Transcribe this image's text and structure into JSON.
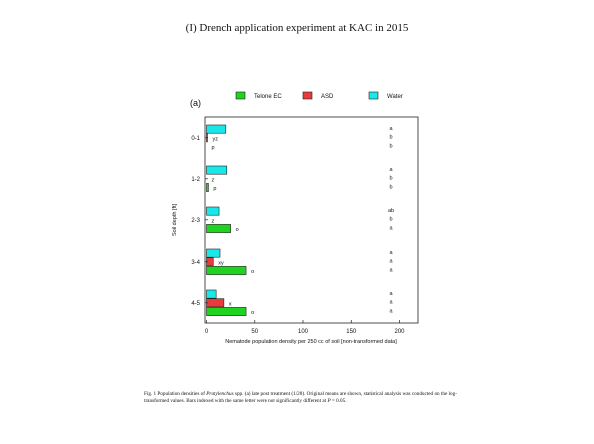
{
  "slide": {
    "title": "(I) Drench application experiment at KAC in 2015",
    "caption_parts": {
      "p1": "Fig. 1 Population densities of ",
      "species": "Pratylenchus",
      "p2": " spp. (a) late post treatment (1/28). Original means are shown, statistical analysis was conducted on the log-transformed values. Bars indexed with the same letter were not significantly different at ",
      "pvar": "P",
      "p3": " = 0.05."
    }
  },
  "chart_data": {
    "type": "bar",
    "orientation": "horizontal",
    "panel_label": "(a)",
    "categories": [
      "0-1",
      "1-2",
      "2-3",
      "3-4",
      "4-5"
    ],
    "series": [
      {
        "name": "Telone EC",
        "color": "#21d321",
        "values": [
          0,
          2,
          25,
          41,
          41
        ],
        "labels": [
          "p",
          "p",
          "o",
          "o",
          "o"
        ]
      },
      {
        "name": "ASD",
        "color": "#e83c3c",
        "values": [
          1,
          0,
          0,
          7,
          18
        ],
        "labels": [
          "yz",
          "z",
          "z",
          "xy",
          "x"
        ]
      },
      {
        "name": "Water",
        "color": "#19e8ea",
        "values": [
          20,
          21,
          13,
          14,
          10
        ],
        "labels": [
          "",
          "",
          "",
          "",
          ""
        ]
      }
    ],
    "right_letters": [
      [
        "a",
        "b",
        "b"
      ],
      [
        "a",
        "b",
        "b"
      ],
      [
        "ab",
        "b",
        "a"
      ],
      [
        "a",
        "a",
        "a"
      ],
      [
        "a",
        "a",
        "a"
      ]
    ],
    "xlabel": "Nematode population density per 250 cc of soil [non-transformed data]",
    "ylabel": "Soil depth [ft]",
    "xlim": [
      0,
      220
    ],
    "xticks": [
      0,
      50,
      100,
      150,
      200
    ],
    "grid": false,
    "legend_position": "top"
  }
}
